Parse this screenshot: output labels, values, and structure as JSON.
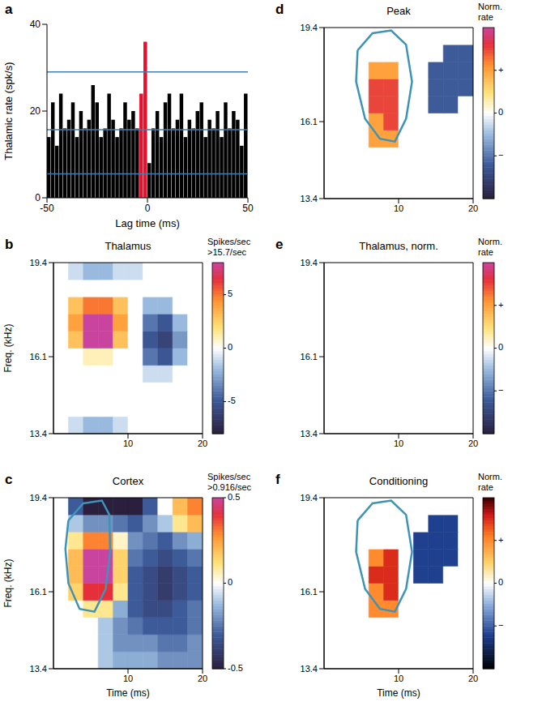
{
  "chart_data": [
    {
      "type": "histogram",
      "panel": "a",
      "xlabel": "Lag time (ms)",
      "ylabel": "Thalamic rate (spk/s)",
      "bins": [
        -50,
        -48,
        -46,
        -44,
        -42,
        -40,
        -38,
        -36,
        -34,
        -32,
        -30,
        -28,
        -26,
        -24,
        -22,
        -20,
        -18,
        -16,
        -14,
        -12,
        -10,
        -8,
        -6,
        -4,
        -2,
        0,
        2,
        4,
        6,
        8,
        10,
        12,
        14,
        16,
        18,
        20,
        22,
        24,
        26,
        28,
        30,
        32,
        34,
        36,
        38,
        40,
        42,
        44,
        46,
        48,
        50
      ],
      "values": [
        14,
        22,
        12,
        24,
        16,
        18,
        22,
        14,
        20,
        16,
        18,
        26,
        22,
        14,
        16,
        24,
        18,
        14,
        16,
        22,
        18,
        20,
        16,
        24,
        36,
        8,
        16,
        20,
        14,
        22,
        24,
        16,
        18,
        24,
        14,
        18,
        16,
        20,
        22,
        14,
        18,
        16,
        20,
        14,
        22,
        16,
        20,
        18,
        12,
        24
      ],
      "colors": [
        "#000000",
        "#000000",
        "#000000",
        "#000000",
        "#000000",
        "#000000",
        "#000000",
        "#000000",
        "#000000",
        "#000000",
        "#000000",
        "#000000",
        "#000000",
        "#000000",
        "#000000",
        "#000000",
        "#000000",
        "#000000",
        "#000000",
        "#000000",
        "#000000",
        "#000000",
        "#000000",
        "#e8112d",
        "#e8112d",
        "#000000",
        "#000000",
        "#000000",
        "#000000",
        "#000000",
        "#000000",
        "#000000",
        "#000000",
        "#000000",
        "#000000",
        "#000000",
        "#000000",
        "#000000",
        "#000000",
        "#000000",
        "#000000",
        "#000000",
        "#000000",
        "#000000",
        "#000000",
        "#000000",
        "#000000",
        "#000000",
        "#000000",
        "#000000"
      ],
      "xlim": [
        -50,
        50
      ],
      "xticks": [
        -50,
        0,
        50
      ],
      "ylim": [
        0,
        40
      ],
      "yticks": [
        0,
        20,
        40
      ],
      "hlines": [
        29,
        15.7,
        5.5
      ]
    },
    {
      "type": "heatmap",
      "panel": "b",
      "title": "Thalamus",
      "ylabel": "Freq. (kHz)",
      "xlim": [
        0,
        20
      ],
      "xticks": [
        10,
        20
      ],
      "ylim": [
        13.4,
        19.4
      ],
      "yticks": [
        13.4,
        16.1,
        19.4
      ],
      "x_edges": [
        0,
        2,
        4,
        6,
        8,
        10,
        12,
        14,
        16,
        18,
        20
      ],
      "y_edges": [
        13.4,
        14.0,
        14.6,
        15.2,
        15.8,
        16.4,
        17.0,
        17.6,
        18.2,
        18.8,
        19.4
      ],
      "z": [
        [
          0,
          -1,
          -2,
          -2,
          -1,
          0,
          0,
          0,
          0,
          0
        ],
        [
          0,
          0,
          0,
          0,
          0,
          0,
          0,
          0,
          0,
          0
        ],
        [
          0,
          0,
          0,
          0,
          0,
          0,
          0,
          0,
          0,
          0
        ],
        [
          0,
          0,
          0,
          0,
          0,
          0,
          -1,
          -1,
          0,
          0
        ],
        [
          0,
          0,
          1,
          1,
          0,
          0,
          -4,
          -5,
          -2,
          0
        ],
        [
          0,
          3,
          8,
          8,
          3,
          0,
          -5,
          -6,
          -3,
          0
        ],
        [
          0,
          4,
          8,
          8,
          4,
          0,
          -4,
          -5,
          -2,
          0
        ],
        [
          0,
          3,
          5,
          5,
          3,
          0,
          -2,
          -2,
          0,
          0
        ],
        [
          0,
          0,
          0,
          0,
          0,
          0,
          0,
          0,
          0,
          0
        ],
        [
          0,
          -1,
          -2,
          -2,
          -1,
          -1,
          0,
          0,
          0,
          0
        ]
      ],
      "colorbar": {
        "label": [
          "Spikes/sec",
          ">15.7/sec"
        ],
        "range": [
          -8,
          8
        ],
        "ticks": [
          5,
          0,
          -5
        ]
      }
    },
    {
      "type": "heatmap",
      "panel": "c",
      "title": "Cortex",
      "xlabel": "Time (ms)",
      "ylabel": "Freq. (kHz)",
      "xlim": [
        0,
        20
      ],
      "xticks": [
        10,
        20
      ],
      "ylim": [
        13.4,
        19.4
      ],
      "yticks": [
        13.4,
        16.1,
        19.4
      ],
      "x_edges": [
        0,
        2,
        4,
        6,
        8,
        10,
        12,
        14,
        16,
        18,
        20
      ],
      "y_edges": [
        13.4,
        14.0,
        14.6,
        15.2,
        15.8,
        16.4,
        17.0,
        17.6,
        18.2,
        18.8,
        19.4
      ],
      "z": [
        [
          0,
          0,
          0,
          -0.1,
          -0.15,
          -0.15,
          -0.15,
          -0.2,
          -0.2,
          -0.2
        ],
        [
          0,
          0,
          0,
          -0.1,
          -0.2,
          -0.2,
          -0.2,
          -0.25,
          -0.25,
          -0.2
        ],
        [
          0,
          0,
          0,
          -0.1,
          -0.2,
          -0.25,
          -0.3,
          -0.3,
          -0.3,
          -0.25
        ],
        [
          0,
          0,
          0.1,
          0.1,
          -0.15,
          -0.3,
          -0.35,
          -0.35,
          -0.3,
          -0.25
        ],
        [
          0,
          0.15,
          0.4,
          0.4,
          0.1,
          -0.3,
          -0.35,
          -0.4,
          -0.35,
          -0.3
        ],
        [
          0,
          0.2,
          0.5,
          0.5,
          0.15,
          -0.3,
          -0.35,
          -0.4,
          -0.35,
          -0.3
        ],
        [
          0,
          0.2,
          0.5,
          0.5,
          0.15,
          -0.25,
          -0.3,
          -0.35,
          -0.3,
          -0.25
        ],
        [
          0,
          0.1,
          0.3,
          0.3,
          0.05,
          -0.2,
          -0.25,
          -0.3,
          -0.2,
          -0.15
        ],
        [
          0,
          -0.1,
          -0.2,
          -0.2,
          -0.25,
          -0.3,
          -0.2,
          -0.1,
          0.1,
          0.2
        ],
        [
          0,
          -0.3,
          -0.5,
          -0.5,
          -0.5,
          -0.5,
          -0.3,
          0,
          0.2,
          0.3
        ]
      ],
      "colorbar": {
        "label": [
          "Spikes/sec",
          ">0.916/sec"
        ],
        "range": [
          -0.5,
          0.5
        ],
        "ticks": [
          0.5,
          0,
          -0.5
        ]
      },
      "contour": {
        "x": [
          2.0,
          4,
          6.5,
          7.5,
          7.6,
          7,
          5.5,
          3.5,
          2,
          1.6,
          2.0
        ],
        "y": [
          18.6,
          19.2,
          19.3,
          18.8,
          17.5,
          16.2,
          15.4,
          15.5,
          16.4,
          17.6,
          18.6
        ]
      }
    },
    {
      "type": "heatmap",
      "panel": "d",
      "title": "Peak",
      "xlim": [
        0,
        20
      ],
      "xticks": [
        10,
        20
      ],
      "ylim": [
        13.4,
        19.4
      ],
      "yticks": [
        13.4,
        16.1,
        19.4
      ],
      "x_edges": [
        0,
        2,
        4,
        6,
        8,
        10,
        12,
        14,
        16,
        18,
        20
      ],
      "y_edges": [
        13.4,
        14.0,
        14.6,
        15.2,
        15.8,
        16.4,
        17.0,
        17.6,
        18.2,
        18.8,
        19.4
      ],
      "z": [
        [
          0,
          0,
          0,
          0,
          0,
          0,
          0,
          0,
          0,
          0
        ],
        [
          0,
          0,
          0,
          0,
          0,
          0,
          0,
          0,
          0,
          0
        ],
        [
          0,
          0,
          0,
          0,
          0,
          0,
          0,
          0,
          0,
          0
        ],
        [
          0,
          0,
          0,
          1,
          1,
          0,
          0,
          0,
          0,
          0
        ],
        [
          0,
          0,
          0,
          1,
          1.5,
          0,
          0,
          0,
          0,
          0
        ],
        [
          0,
          0,
          0,
          1.5,
          1.5,
          0,
          0,
          -1.2,
          -1.2,
          0
        ],
        [
          0,
          0,
          0,
          1.5,
          1.5,
          0,
          0,
          -1.2,
          -1.2,
          -1.2
        ],
        [
          0,
          0,
          0,
          1,
          1,
          0,
          0,
          -1.2,
          -1.2,
          -1.2
        ],
        [
          0,
          0,
          0,
          0,
          0,
          0,
          0,
          0,
          -1.2,
          -1.2
        ],
        [
          0,
          0,
          0,
          0,
          0,
          0,
          0,
          0,
          0,
          0
        ]
      ],
      "colorbar": {
        "label": [
          "Norm.",
          "rate"
        ],
        "range": [
          -2,
          2
        ],
        "ticks": [
          {
            "value": 1,
            "label": "+"
          },
          0,
          {
            "value": -1,
            "label": "−"
          }
        ]
      },
      "contour": {
        "x": [
          4.5,
          6.5,
          9,
          11,
          11.8,
          11,
          9.5,
          7.5,
          5.5,
          4.3,
          4.5
        ],
        "y": [
          18.6,
          19.2,
          19.3,
          18.8,
          17.5,
          16.2,
          15.4,
          15.5,
          16.2,
          17.5,
          18.6
        ]
      }
    },
    {
      "type": "heatmap",
      "panel": "e",
      "title": "Thalamus, norm.",
      "xlim": [
        0,
        20
      ],
      "xticks": [
        10,
        20
      ],
      "ylim": [
        13.4,
        19.4
      ],
      "yticks": [
        13.4,
        16.1,
        19.4
      ],
      "x_edges": [
        0,
        2,
        4,
        6,
        8,
        10,
        12,
        14,
        16,
        18,
        20
      ],
      "y_edges": [
        13.4,
        14.0,
        14.6,
        15.2,
        15.8,
        16.4,
        17.0,
        17.6,
        18.2,
        18.8,
        19.4
      ],
      "z": [
        [
          0,
          0,
          0,
          0,
          0,
          0,
          0,
          0,
          0,
          0
        ],
        [
          0,
          0,
          0,
          0,
          0,
          0,
          0,
          0,
          0,
          0
        ],
        [
          0,
          0,
          0,
          0,
          0,
          0,
          0,
          0,
          0,
          0
        ],
        [
          0,
          0,
          0,
          0,
          0,
          0,
          0,
          0,
          0,
          0
        ],
        [
          0,
          0,
          0,
          0,
          0,
          0,
          0,
          0,
          0,
          0
        ],
        [
          0,
          0,
          0,
          0,
          0,
          0,
          0,
          0,
          0,
          0
        ],
        [
          0,
          0,
          0,
          0,
          0,
          0,
          0,
          0,
          0,
          0
        ],
        [
          0,
          0,
          0,
          0,
          0,
          0,
          0,
          0,
          0,
          0
        ],
        [
          0,
          0,
          0,
          0,
          0,
          0,
          0,
          0,
          0,
          0
        ],
        [
          0,
          0,
          0,
          0,
          0,
          0,
          0,
          0,
          0,
          0
        ]
      ],
      "colorbar": {
        "label": [
          "Norm.",
          "rate"
        ],
        "range": [
          -2,
          2
        ],
        "ticks": [
          {
            "value": 1,
            "label": "+"
          },
          0,
          {
            "value": -1,
            "label": "−"
          }
        ]
      }
    },
    {
      "type": "heatmap",
      "panel": "f",
      "title": "Conditioning",
      "xlabel": "Time (ms)",
      "xlim": [
        0,
        20
      ],
      "xticks": [
        10,
        20
      ],
      "ylim": [
        13.4,
        19.4
      ],
      "yticks": [
        13.4,
        16.1,
        19.4
      ],
      "x_edges": [
        0,
        2,
        4,
        6,
        8,
        10,
        12,
        14,
        16,
        18,
        20
      ],
      "y_edges": [
        13.4,
        14.0,
        14.6,
        15.2,
        15.8,
        16.4,
        17.0,
        17.6,
        18.2,
        18.8,
        19.4
      ],
      "z": [
        [
          0,
          0,
          0,
          0,
          0,
          0,
          0,
          0,
          0,
          0
        ],
        [
          0,
          0,
          0,
          0,
          0,
          0,
          0,
          0,
          0,
          0
        ],
        [
          0,
          0,
          0,
          0,
          0,
          0,
          0,
          0,
          0,
          0
        ],
        [
          0,
          0,
          0,
          1,
          1,
          0,
          0,
          0,
          0,
          0
        ],
        [
          0,
          0,
          0,
          1,
          1.5,
          0,
          0,
          0,
          0,
          0
        ],
        [
          0,
          0,
          0,
          1.5,
          1.5,
          0,
          -1.2,
          -1.2,
          0,
          0
        ],
        [
          0,
          0,
          0,
          1,
          1.5,
          0,
          -1.2,
          -1.2,
          -1.2,
          0
        ],
        [
          0,
          0,
          0,
          0,
          0,
          0,
          -1.2,
          -1.2,
          -1.2,
          0
        ],
        [
          0,
          0,
          0,
          0,
          0,
          0,
          0,
          -1.2,
          -1.2,
          0
        ],
        [
          0,
          0,
          0,
          0,
          0,
          0,
          0,
          0,
          0,
          0
        ]
      ],
      "colorbar": {
        "label": [
          "Norm.",
          "rate"
        ],
        "range": [
          -2,
          2
        ],
        "ticks": [
          {
            "value": 1,
            "label": "+"
          },
          0,
          {
            "value": -1,
            "label": "−"
          }
        ]
      },
      "contour": {
        "x": [
          4.5,
          6.5,
          9,
          11,
          11.8,
          11,
          9.5,
          7.5,
          5.5,
          4.3,
          4.5
        ],
        "y": [
          18.6,
          19.2,
          19.3,
          18.8,
          17.5,
          16.2,
          15.4,
          15.5,
          16.2,
          17.5,
          18.6
        ]
      }
    }
  ]
}
